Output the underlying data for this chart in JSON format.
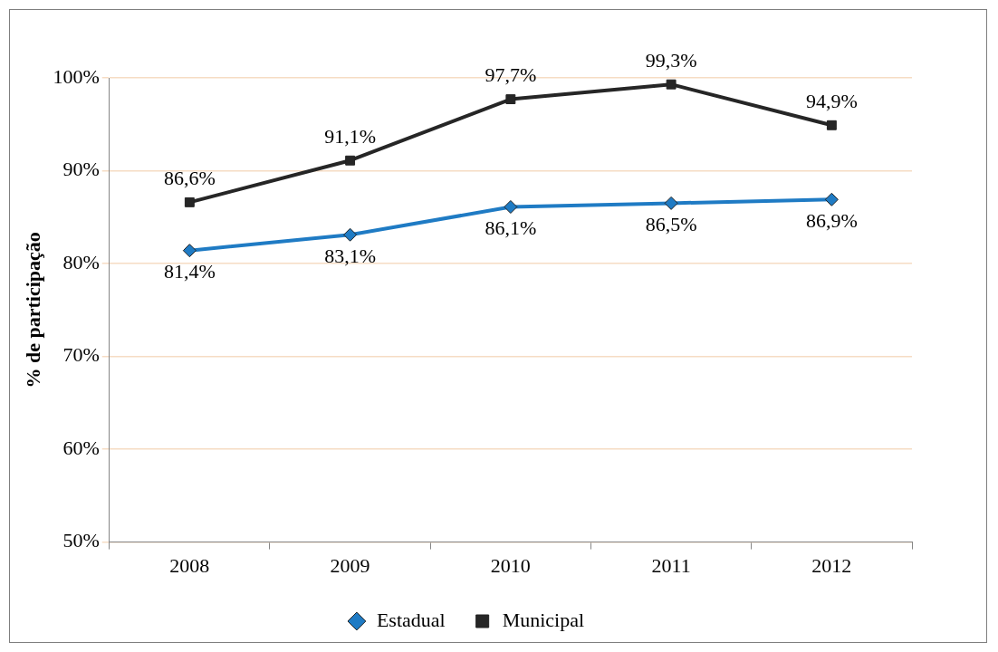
{
  "chart_data": {
    "type": "line",
    "ylabel": "% de participação",
    "categories": [
      "2008",
      "2009",
      "2010",
      "2011",
      "2012"
    ],
    "ylim": [
      50,
      100
    ],
    "yticks": [
      {
        "value": 50,
        "label": "50%"
      },
      {
        "value": 60,
        "label": "60%"
      },
      {
        "value": 70,
        "label": "70%"
      },
      {
        "value": 80,
        "label": "80%"
      },
      {
        "value": 90,
        "label": "90%"
      },
      {
        "value": 100,
        "label": "100%"
      }
    ],
    "grid": "y",
    "legend": "bottom",
    "line_style": "solid",
    "series": [
      {
        "name": "Estadual",
        "color": "#1f7bc4",
        "marker": "diamond",
        "values": [
          81.4,
          83.1,
          86.1,
          86.5,
          86.9
        ],
        "value_labels": [
          "81,4%",
          "83,1%",
          "86,1%",
          "86,5%",
          "86,9%"
        ]
      },
      {
        "name": "Municipal",
        "color": "#262626",
        "marker": "square",
        "values": [
          86.6,
          91.1,
          97.7,
          99.3,
          94.9
        ],
        "value_labels": [
          "86,6%",
          "91,1%",
          "97,7%",
          "99,3%",
          "94,9%"
        ]
      }
    ]
  }
}
